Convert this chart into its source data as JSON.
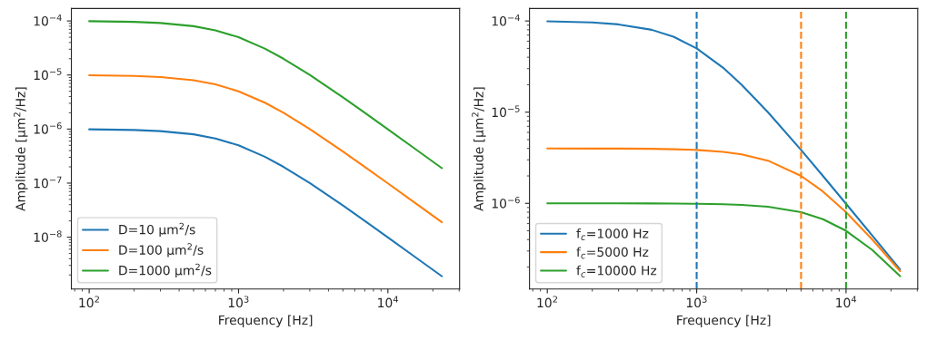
{
  "chart_data": [
    {
      "type": "line",
      "xlabel": "Frequency [Hz]",
      "ylabel": "Amplitude [μm$^{2}$/Hz]",
      "log": "xy",
      "legend": "lower left",
      "grid": false,
      "x": [
        100,
        200,
        300,
        500,
        700,
        1000,
        1500,
        2000,
        3000,
        5000,
        7000,
        10000,
        15000,
        23000
      ],
      "xlim": [
        76,
        30200
      ],
      "ylim": [
        1.1e-09,
        0.00017
      ],
      "xticks": [
        {
          "value": 100,
          "label": "10$^{2}$"
        },
        {
          "value": 1000,
          "label": "10$^{3}$"
        },
        {
          "value": 10000,
          "label": "10$^{4}$"
        }
      ],
      "yticks": [
        {
          "value": 1e-08,
          "label": "10$^{−8}$"
        },
        {
          "value": 1e-07,
          "label": "10$^{−7}$"
        },
        {
          "value": 1e-06,
          "label": "10$^{−6}$"
        },
        {
          "value": 1e-05,
          "label": "10$^{−5}$"
        },
        {
          "value": 0.0001,
          "label": "10$^{−4}$"
        }
      ],
      "series": [
        {
          "name": "D=10 μm$^{2}$/s",
          "color": "#1f77b4",
          "values": [
            9.9e-07,
            9.62e-07,
            9.17e-07,
            8e-07,
            6.71e-07,
            5e-07,
            3.08e-07,
            2e-07,
            1e-07,
            3.85e-08,
            2e-08,
            9.9e-09,
            4.42e-09,
            1.89e-09
          ]
        },
        {
          "name": "D=100 μm$^{2}$/s",
          "color": "#ff7f0e",
          "values": [
            9.9e-06,
            9.62e-06,
            9.17e-06,
            8e-06,
            6.71e-06,
            5e-06,
            3.08e-06,
            2e-06,
            1e-06,
            3.85e-07,
            2e-07,
            9.9e-08,
            4.42e-08,
            1.89e-08
          ]
        },
        {
          "name": "D=1000 μm$^{2}$/s",
          "color": "#2ca02c",
          "values": [
            9.9e-05,
            9.62e-05,
            9.17e-05,
            8e-05,
            6.71e-05,
            5e-05,
            3.08e-05,
            2e-05,
            1e-05,
            3.85e-06,
            2e-06,
            9.9e-07,
            4.42e-07,
            1.89e-07
          ]
        }
      ]
    },
    {
      "type": "line",
      "xlabel": "Frequency [Hz]",
      "ylabel": "Amplitude [μm$^{2}$/Hz]",
      "log": "xy",
      "legend": "lower left",
      "grid": false,
      "x": [
        100,
        200,
        300,
        500,
        700,
        1000,
        1500,
        2000,
        3000,
        5000,
        7000,
        10000,
        15000,
        23000
      ],
      "xlim": [
        76,
        30200
      ],
      "ylim": [
        1.15e-07,
        0.000137
      ],
      "xticks": [
        {
          "value": 100,
          "label": "10$^{2}$"
        },
        {
          "value": 1000,
          "label": "10$^{3}$"
        },
        {
          "value": 10000,
          "label": "10$^{4}$"
        }
      ],
      "yticks": [
        {
          "value": 1e-06,
          "label": "10$^{−6}$"
        },
        {
          "value": 1e-05,
          "label": "10$^{−5}$"
        },
        {
          "value": 0.0001,
          "label": "10$^{−4}$"
        }
      ],
      "series": [
        {
          "name": "f$_{c}$=1000 Hz",
          "color": "#1f77b4",
          "values": [
            9.9e-05,
            9.62e-05,
            9.17e-05,
            8e-05,
            6.71e-05,
            5e-05,
            3.08e-05,
            2e-05,
            1e-05,
            3.85e-06,
            2e-06,
            9.9e-07,
            4.42e-07,
            1.89e-07
          ]
        },
        {
          "name": "f$_{c}$=5000 Hz",
          "color": "#ff7f0e",
          "values": [
            4e-06,
            3.99e-06,
            3.99e-06,
            3.96e-06,
            3.92e-06,
            3.85e-06,
            3.67e-06,
            3.45e-06,
            2.94e-06,
            2e-06,
            1.35e-06,
            8e-07,
            4e-07,
            1.81e-07
          ]
        },
        {
          "name": "f$_{c}$=10000 Hz",
          "color": "#2ca02c",
          "values": [
            1e-06,
            1e-06,
            9.99e-07,
            9.98e-07,
            9.95e-07,
            9.9e-07,
            9.78e-07,
            9.62e-07,
            9.17e-07,
            8e-07,
            6.71e-07,
            5e-07,
            3.08e-07,
            1.59e-07
          ]
        }
      ],
      "ref_lines": [
        {
          "axis": "x",
          "value": 1000,
          "color": "#1f77b4",
          "line_style": "dashed"
        },
        {
          "axis": "x",
          "value": 5000,
          "color": "#ff7f0e",
          "line_style": "dashed"
        },
        {
          "axis": "x",
          "value": 10000,
          "color": "#2ca02c",
          "line_style": "dashed"
        }
      ]
    }
  ]
}
